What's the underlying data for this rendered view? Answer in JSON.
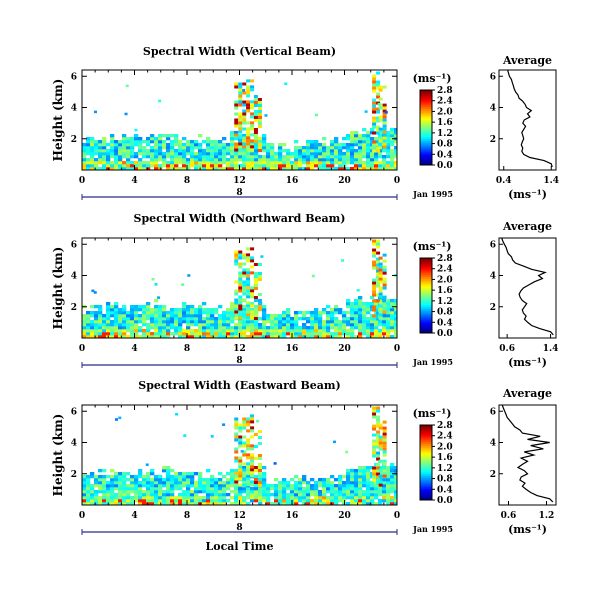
{
  "chart_data": [
    {
      "type": "heatmap",
      "title": "Spectral Width (Vertical Beam)",
      "ylabel": "Height (km)",
      "xlabel": "",
      "x_ticks": [
        "0",
        "4",
        "8",
        "12",
        "16",
        "20",
        "0"
      ],
      "y_ticks": [
        "2",
        "4",
        "6"
      ],
      "xlim": [
        0,
        24
      ],
      "ylim": [
        0,
        6.4
      ],
      "day_label": "8",
      "date_label": "Jan 1995",
      "colorbar": {
        "unit": "(ms⁻¹)",
        "ticks": [
          "0.0",
          "0.4",
          "0.8",
          "1.2",
          "1.6",
          "2.0",
          "2.4",
          "2.8"
        ],
        "range": [
          0,
          2.8
        ]
      },
      "average": {
        "title": "Average",
        "unit": "(ms⁻¹)",
        "x_ticks": [
          "0.4",
          "1.4"
        ],
        "xlim": [
          0.3,
          1.5
        ],
        "y_ticks": [
          "2",
          "4",
          "6"
        ],
        "profile_x": [
          1.42,
          1.4,
          1.25,
          0.95,
          0.82,
          0.78,
          0.8,
          0.77,
          0.79,
          0.82,
          0.8,
          0.78,
          0.82,
          0.86,
          0.8,
          0.83,
          0.95,
          0.9,
          0.98,
          0.88,
          0.85,
          0.8,
          0.72,
          0.7,
          0.65,
          0.62,
          0.6,
          0.58,
          0.56,
          0.52,
          0.5,
          0.48
        ],
        "profile_y": [
          0.2,
          0.4,
          0.6,
          0.8,
          1.0,
          1.2,
          1.4,
          1.6,
          1.8,
          2.0,
          2.2,
          2.4,
          2.6,
          2.8,
          3.0,
          3.2,
          3.4,
          3.6,
          3.8,
          4.0,
          4.2,
          4.4,
          4.6,
          4.8,
          5.0,
          5.2,
          5.4,
          5.6,
          5.8,
          6.0,
          6.2,
          6.4
        ]
      }
    },
    {
      "type": "heatmap",
      "title": "Spectral Width (Northward Beam)",
      "ylabel": "Height (km)",
      "xlabel": "",
      "x_ticks": [
        "0",
        "4",
        "8",
        "12",
        "16",
        "20",
        "0"
      ],
      "y_ticks": [
        "2",
        "4",
        "6"
      ],
      "xlim": [
        0,
        24
      ],
      "ylim": [
        0,
        6.4
      ],
      "day_label": "8",
      "date_label": "Jan 1995",
      "colorbar": {
        "unit": "(ms⁻¹)",
        "ticks": [
          "0.0",
          "0.4",
          "0.8",
          "1.2",
          "1.6",
          "2.0",
          "2.4",
          "2.8"
        ],
        "range": [
          0,
          2.8
        ]
      },
      "average": {
        "title": "Average",
        "unit": "(ms⁻¹)",
        "x_ticks": [
          "0.6",
          "1.4"
        ],
        "xlim": [
          0.45,
          1.5
        ],
        "y_ticks": [
          "2",
          "4",
          "6"
        ],
        "profile_x": [
          1.45,
          1.4,
          1.2,
          1.05,
          0.98,
          0.92,
          0.95,
          0.9,
          0.88,
          0.92,
          0.96,
          0.88,
          0.84,
          0.82,
          0.85,
          0.9,
          1.0,
          1.1,
          1.25,
          1.18,
          1.3,
          1.05,
          0.9,
          0.75,
          0.7,
          0.68,
          0.62,
          0.6,
          0.58,
          0.55,
          0.52,
          0.5
        ],
        "profile_y": [
          0.2,
          0.4,
          0.6,
          0.8,
          1.0,
          1.2,
          1.4,
          1.6,
          1.8,
          2.0,
          2.2,
          2.4,
          2.6,
          2.8,
          3.0,
          3.2,
          3.4,
          3.6,
          3.8,
          4.0,
          4.2,
          4.4,
          4.6,
          4.8,
          5.0,
          5.2,
          5.4,
          5.6,
          5.8,
          6.0,
          6.2,
          6.4
        ]
      }
    },
    {
      "type": "heatmap",
      "title": "Spectral Width (Eastward Beam)",
      "ylabel": "Height (km)",
      "xlabel": "Local Time",
      "x_ticks": [
        "0",
        "4",
        "8",
        "12",
        "16",
        "20",
        "0"
      ],
      "y_ticks": [
        "2",
        "4",
        "6"
      ],
      "xlim": [
        0,
        24
      ],
      "ylim": [
        0,
        6.4
      ],
      "day_label": "8",
      "date_label": "Jan 1995",
      "colorbar": {
        "unit": "(ms⁻¹)",
        "ticks": [
          "0.0",
          "0.4",
          "0.8",
          "1.2",
          "1.6",
          "2.0",
          "2.4",
          "2.8"
        ],
        "range": [
          0,
          2.8
        ]
      },
      "average": {
        "title": "Average",
        "unit": "(ms⁻¹)",
        "x_ticks": [
          "0.6",
          "1.2"
        ],
        "xlim": [
          0.45,
          1.35
        ],
        "y_ticks": [
          "2",
          "4",
          "6"
        ],
        "profile_x": [
          1.3,
          1.25,
          1.05,
          0.95,
          0.88,
          0.82,
          0.86,
          0.78,
          0.8,
          0.9,
          0.85,
          0.75,
          0.82,
          0.9,
          0.8,
          1.0,
          0.85,
          1.15,
          0.95,
          1.25,
          0.9,
          1.1,
          0.82,
          0.78,
          0.7,
          0.66,
          0.62,
          0.58,
          0.56,
          0.54,
          0.52,
          0.5
        ],
        "profile_y": [
          0.2,
          0.4,
          0.6,
          0.8,
          1.0,
          1.2,
          1.4,
          1.6,
          1.8,
          2.0,
          2.2,
          2.4,
          2.6,
          2.8,
          3.0,
          3.2,
          3.4,
          3.6,
          3.8,
          4.0,
          4.2,
          4.4,
          4.6,
          4.8,
          5.0,
          5.2,
          5.4,
          5.6,
          5.8,
          6.0,
          6.2,
          6.4
        ]
      }
    }
  ]
}
